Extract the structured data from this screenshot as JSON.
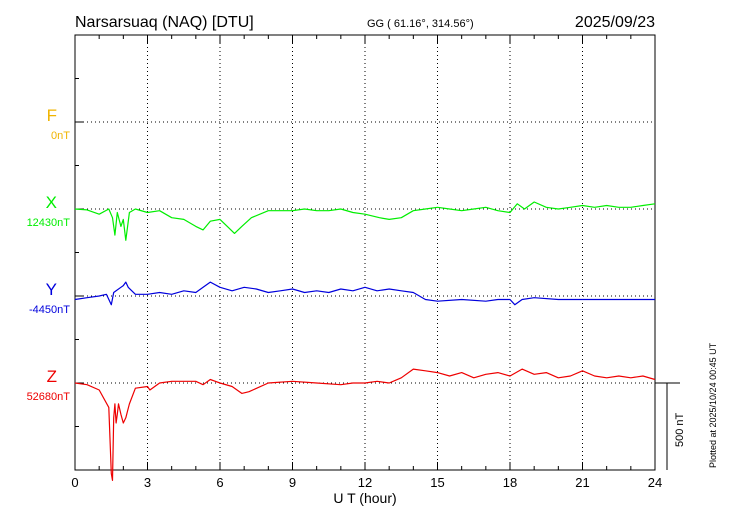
{
  "header": {
    "station": "Narsarsuaq (NAQ)  [DTU]",
    "coords": "GG ( 61.16°, 314.56°)",
    "date": "2025/09/23"
  },
  "footer": {
    "plotted": "Plotted at 2025/10/24 00:45 UT"
  },
  "colors": {
    "F": "#f0b400",
    "X": "#00ee00",
    "Y": "#0000dd",
    "Z": "#ee0000",
    "axis": "#000000"
  },
  "chart_data": {
    "type": "line",
    "title": "Narsarsuaq (NAQ)  [DTU]",
    "xlabel": "U T (hour)",
    "xlim": [
      0,
      24
    ],
    "xticks": [
      "0",
      "3",
      "6",
      "9",
      "12",
      "15",
      "18",
      "21",
      "24"
    ],
    "scale_bar": "500 nT",
    "scale_bar_nT": 500,
    "grid": true,
    "series": [
      {
        "name": "F",
        "baseline_label": "0nT",
        "color": "#f0b400",
        "x": [],
        "y": []
      },
      {
        "name": "X",
        "baseline_label": "12430nT",
        "color": "#00ee00",
        "x": [
          0,
          0.5,
          1.0,
          1.4,
          1.55,
          1.65,
          1.75,
          1.9,
          2.0,
          2.1,
          2.25,
          2.5,
          3.0,
          3.5,
          4.0,
          4.5,
          5.0,
          5.3,
          5.6,
          6.0,
          6.3,
          6.6,
          6.9,
          7.3,
          8.0,
          9.0,
          9.5,
          10.0,
          10.5,
          11.0,
          11.5,
          12.0,
          12.6,
          13.0,
          13.5,
          14.0,
          14.5,
          15.0,
          15.5,
          16.0,
          16.5,
          17.0,
          17.5,
          18.0,
          18.3,
          18.6,
          19.0,
          19.5,
          20.0,
          20.5,
          21.0,
          21.5,
          22.0,
          22.5,
          23.0,
          23.5,
          24.0
        ],
        "y": [
          12430,
          12425,
          12400,
          12430,
          12380,
          12280,
          12410,
          12330,
          12370,
          12250,
          12410,
          12430,
          12410,
          12420,
          12380,
          12370,
          12330,
          12310,
          12360,
          12370,
          12330,
          12290,
          12330,
          12380,
          12420,
          12420,
          12430,
          12420,
          12420,
          12430,
          12410,
          12400,
          12380,
          12370,
          12380,
          12420,
          12430,
          12440,
          12430,
          12420,
          12430,
          12440,
          12420,
          12410,
          12460,
          12430,
          12470,
          12440,
          12430,
          12440,
          12450,
          12440,
          12450,
          12440,
          12440,
          12450,
          12460
        ]
      },
      {
        "name": "Y",
        "baseline_label": "-4450nT",
        "color": "#0000dd",
        "x": [
          0,
          0.5,
          1.0,
          1.3,
          1.5,
          1.6,
          1.7,
          1.9,
          2.0,
          2.1,
          2.2,
          2.5,
          3.0,
          3.5,
          4.0,
          4.5,
          5.0,
          5.3,
          5.6,
          6.0,
          6.5,
          7.0,
          7.5,
          8.0,
          8.5,
          9.0,
          9.5,
          10.0,
          10.5,
          11.0,
          11.5,
          12.0,
          12.5,
          13.0,
          13.5,
          14.0,
          14.5,
          15.0,
          16.0,
          17.0,
          17.5,
          18.0,
          18.2,
          18.5,
          19.0,
          20.0,
          21.0,
          22.0,
          23.0,
          24.0
        ],
        "y": [
          -4470,
          -4460,
          -4450,
          -4440,
          -4500,
          -4430,
          -4420,
          -4400,
          -4390,
          -4370,
          -4400,
          -4440,
          -4440,
          -4430,
          -4440,
          -4420,
          -4430,
          -4400,
          -4370,
          -4400,
          -4420,
          -4400,
          -4410,
          -4430,
          -4420,
          -4410,
          -4430,
          -4420,
          -4430,
          -4410,
          -4420,
          -4400,
          -4420,
          -4410,
          -4420,
          -4430,
          -4470,
          -4480,
          -4470,
          -4480,
          -4470,
          -4470,
          -4500,
          -4470,
          -4460,
          -4470,
          -4470,
          -4470,
          -4470,
          -4470
        ]
      },
      {
        "name": "Z",
        "baseline_label": "52680nT",
        "color": "#ee0000",
        "x": [
          0,
          0.5,
          1.0,
          1.4,
          1.5,
          1.55,
          1.6,
          1.65,
          1.7,
          1.75,
          1.8,
          1.9,
          2.0,
          2.1,
          2.25,
          2.5,
          3.0,
          3.1,
          3.5,
          4.0,
          5.0,
          5.3,
          5.6,
          6.0,
          6.5,
          6.9,
          7.2,
          8.0,
          9.0,
          10.0,
          11.0,
          11.5,
          12.0,
          12.5,
          13.0,
          13.5,
          14.0,
          14.5,
          15.0,
          15.5,
          16.0,
          16.5,
          17.0,
          17.5,
          18.0,
          18.5,
          19.0,
          19.5,
          20.0,
          20.5,
          21.0,
          21.5,
          22.0,
          22.5,
          23.0,
          23.5,
          24.0
        ],
        "y": [
          52680,
          52670,
          52640,
          52540,
          52160,
          52120,
          52480,
          52560,
          52450,
          52500,
          52560,
          52500,
          52450,
          52480,
          52560,
          52650,
          52660,
          52640,
          52680,
          52690,
          52690,
          52670,
          52700,
          52680,
          52660,
          52620,
          52630,
          52680,
          52690,
          52680,
          52670,
          52680,
          52680,
          52690,
          52680,
          52710,
          52760,
          52750,
          52740,
          52720,
          52740,
          52710,
          52730,
          52740,
          52720,
          52760,
          52730,
          52740,
          52710,
          52720,
          52750,
          52720,
          52710,
          52720,
          52710,
          52720,
          52700
        ]
      }
    ]
  }
}
